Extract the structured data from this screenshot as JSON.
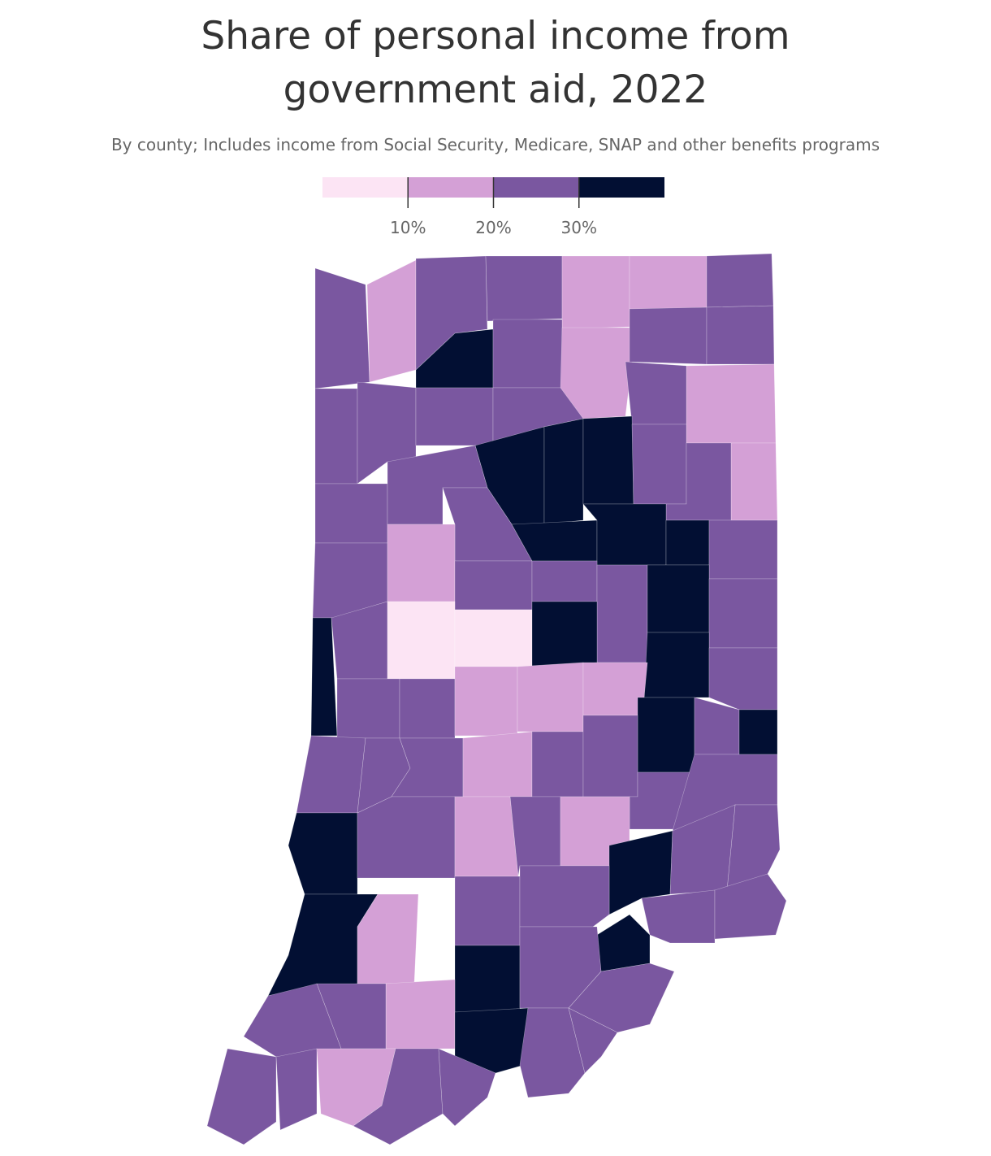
{
  "chart_data": {
    "type": "choropleth",
    "title": "Share of personal income from government aid, 2022",
    "subtitle": "By county; Includes income from Social Security, Medicare, SNAP and other benefits programs",
    "legend": {
      "colors": [
        "#fce4f4",
        "#d4a0d6",
        "#7a57a0",
        "#020f33"
      ],
      "xlim": [
        0,
        40
      ],
      "xticks": [
        {
          "value": 10,
          "label": "10%"
        },
        {
          "value": 20,
          "label": "20%"
        },
        {
          "value": 30,
          "label": "30%"
        }
      ]
    },
    "county_colors": [
      "#7a57a0",
      "#d4a0d6",
      "#7a57a0",
      "#7a57a0",
      "#d4a0d6",
      "#d4a0d6",
      "#7a57a0",
      "#020f33",
      "#7a57a0",
      "#d4a0d6",
      "#7a57a0",
      "#7a57a0",
      "#d4a0d6",
      "#7a57a0",
      "#7a57a0",
      "#7a57a0",
      "#7a57a0",
      "#7a57a0",
      "#020f33",
      "#020f33",
      "#020f33",
      "#7a57a0",
      "#d4a0d6",
      "#7a57a0",
      "#7a57a0",
      "#7a57a0",
      "#7a57a0",
      "#020f33",
      "#020f33",
      "#020f33",
      "#7a57a0",
      "#7a57a0",
      "#d4a0d6",
      "#7a57a0",
      "#7a57a0",
      "#7a57a0",
      "#020f33",
      "#7a57a0",
      "#020f33",
      "#7a57a0",
      "#fce4f4",
      "#fce4f4",
      "#020f33",
      "#020f33",
      "#7a57a0",
      "#7a57a0",
      "#d4a0d6",
      "#d4a0d6",
      "#d4a0d6",
      "#7a57a0",
      "#020f33",
      "#7a57a0",
      "#020f33",
      "#7a57a0",
      "#7a57a0",
      "#7a57a0",
      "#d4a0d6",
      "#7a57a0",
      "#7a57a0",
      "#7a57a0",
      "#020f33",
      "#7a57a0",
      "#d4a0d6",
      "#7a57a0",
      "#d4a0d6",
      "#020f33",
      "#7a57a0",
      "#7a57a0",
      "#020f33",
      "#d4a0d6",
      "#7a57a0",
      "#7a57a0",
      "#7a57a0",
      "#7a57a0",
      "#7a57a0",
      "#020f33",
      "#020f33",
      "#7a57a0",
      "#7a57a0",
      "#d4a0d6",
      "#7a57a0",
      "#7a57a0",
      "#020f33",
      "#7a57a0",
      "#7a57a0",
      "#7a57a0",
      "#7a57a0",
      "#d4a0d6",
      "#7a57a0",
      "#7a57a0"
    ]
  }
}
